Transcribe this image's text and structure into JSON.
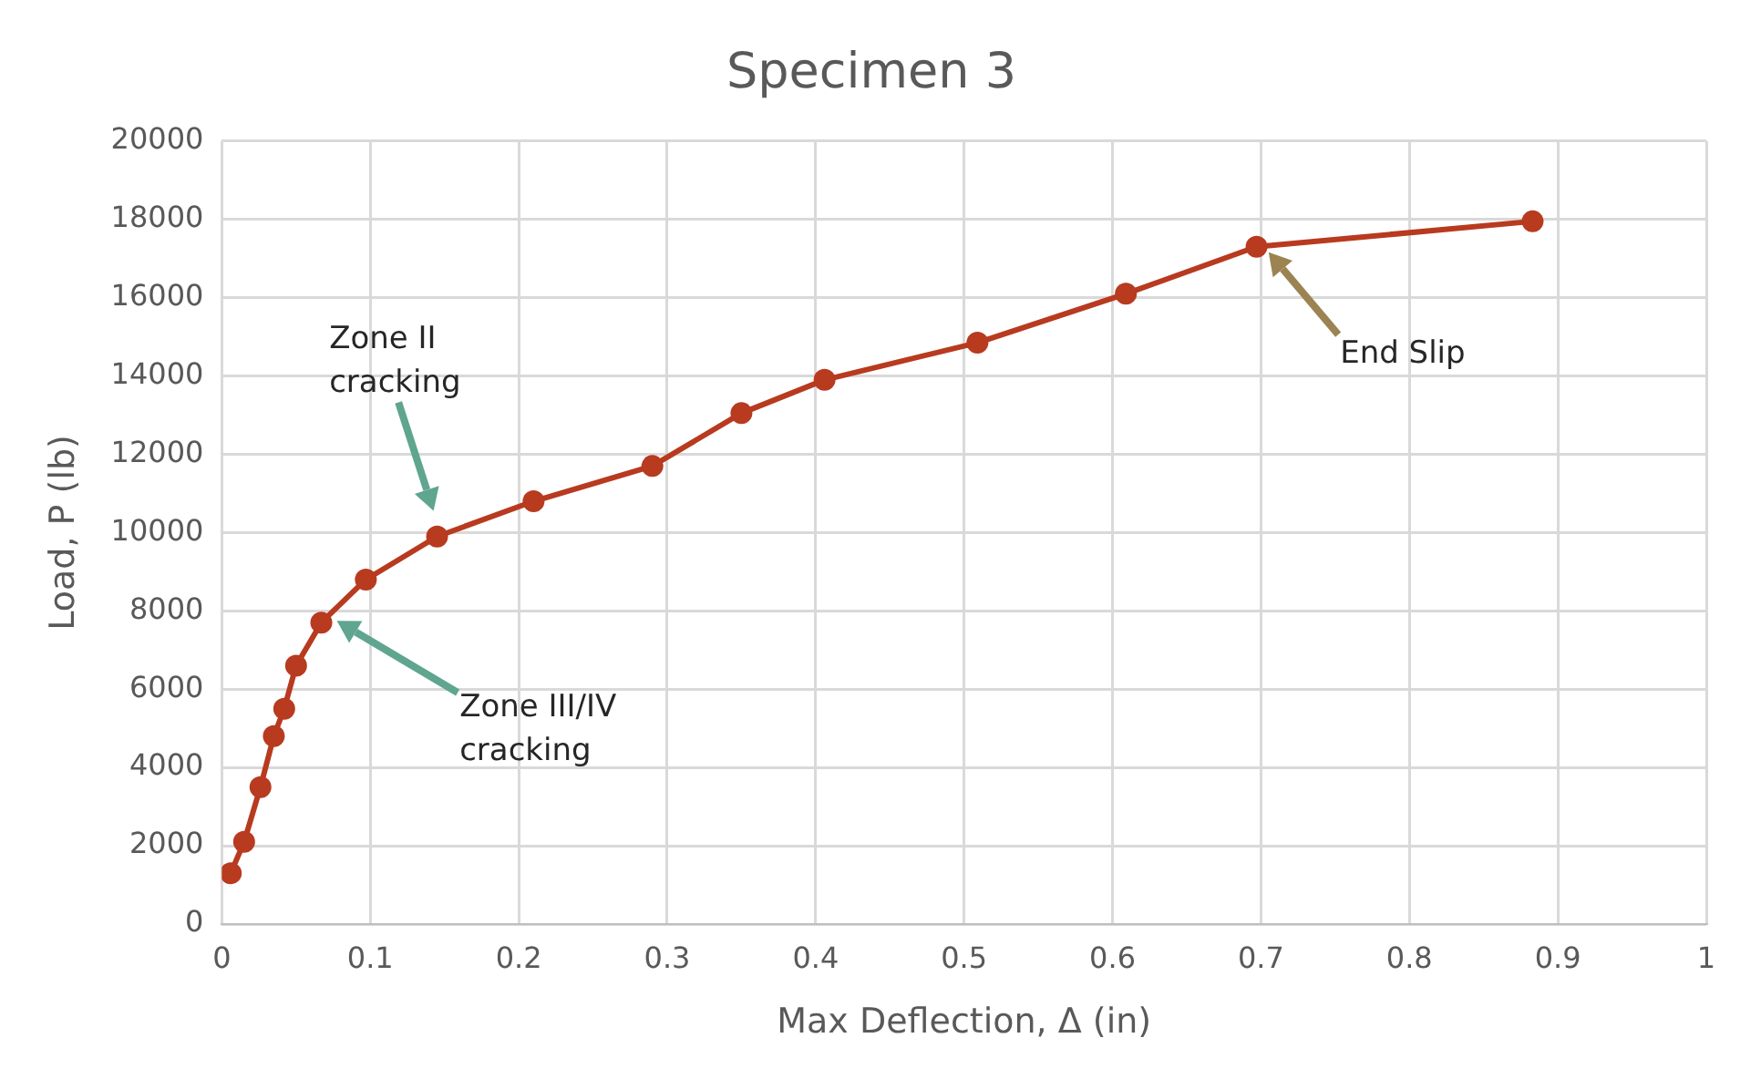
{
  "chart_data": {
    "type": "line",
    "title": "Specimen 3",
    "xlabel": "Max Deflection, Δ (in)",
    "ylabel": "Load, P (lb)",
    "x": [
      0.006,
      0.015,
      0.026,
      0.035,
      0.042,
      0.05,
      0.067,
      0.097,
      0.145,
      0.21,
      0.29,
      0.35,
      0.406,
      0.509,
      0.609,
      0.697,
      0.883
    ],
    "series": [
      {
        "color": "#b83a1f",
        "values": [
          1300,
          2100,
          3500,
          4800,
          5500,
          6600,
          7700,
          8800,
          9900,
          10800,
          11700,
          13050,
          13900,
          14850,
          16100,
          17300,
          17950
        ]
      }
    ],
    "xlim": [
      0,
      1
    ],
    "xticks": [
      0,
      0.1,
      0.2,
      0.3,
      0.4,
      0.5,
      0.6,
      0.7,
      0.8,
      0.9,
      1
    ],
    "ylim": [
      0,
      20000
    ],
    "yticks": [
      0,
      2000,
      4000,
      6000,
      8000,
      10000,
      12000,
      14000,
      16000,
      18000,
      20000
    ],
    "grid": true,
    "legend": false,
    "marker": "circle",
    "line_style": "solid",
    "annotations": [
      "Zone II\ncracking",
      "Zone III/IV\ncracking",
      "End Slip"
    ]
  }
}
